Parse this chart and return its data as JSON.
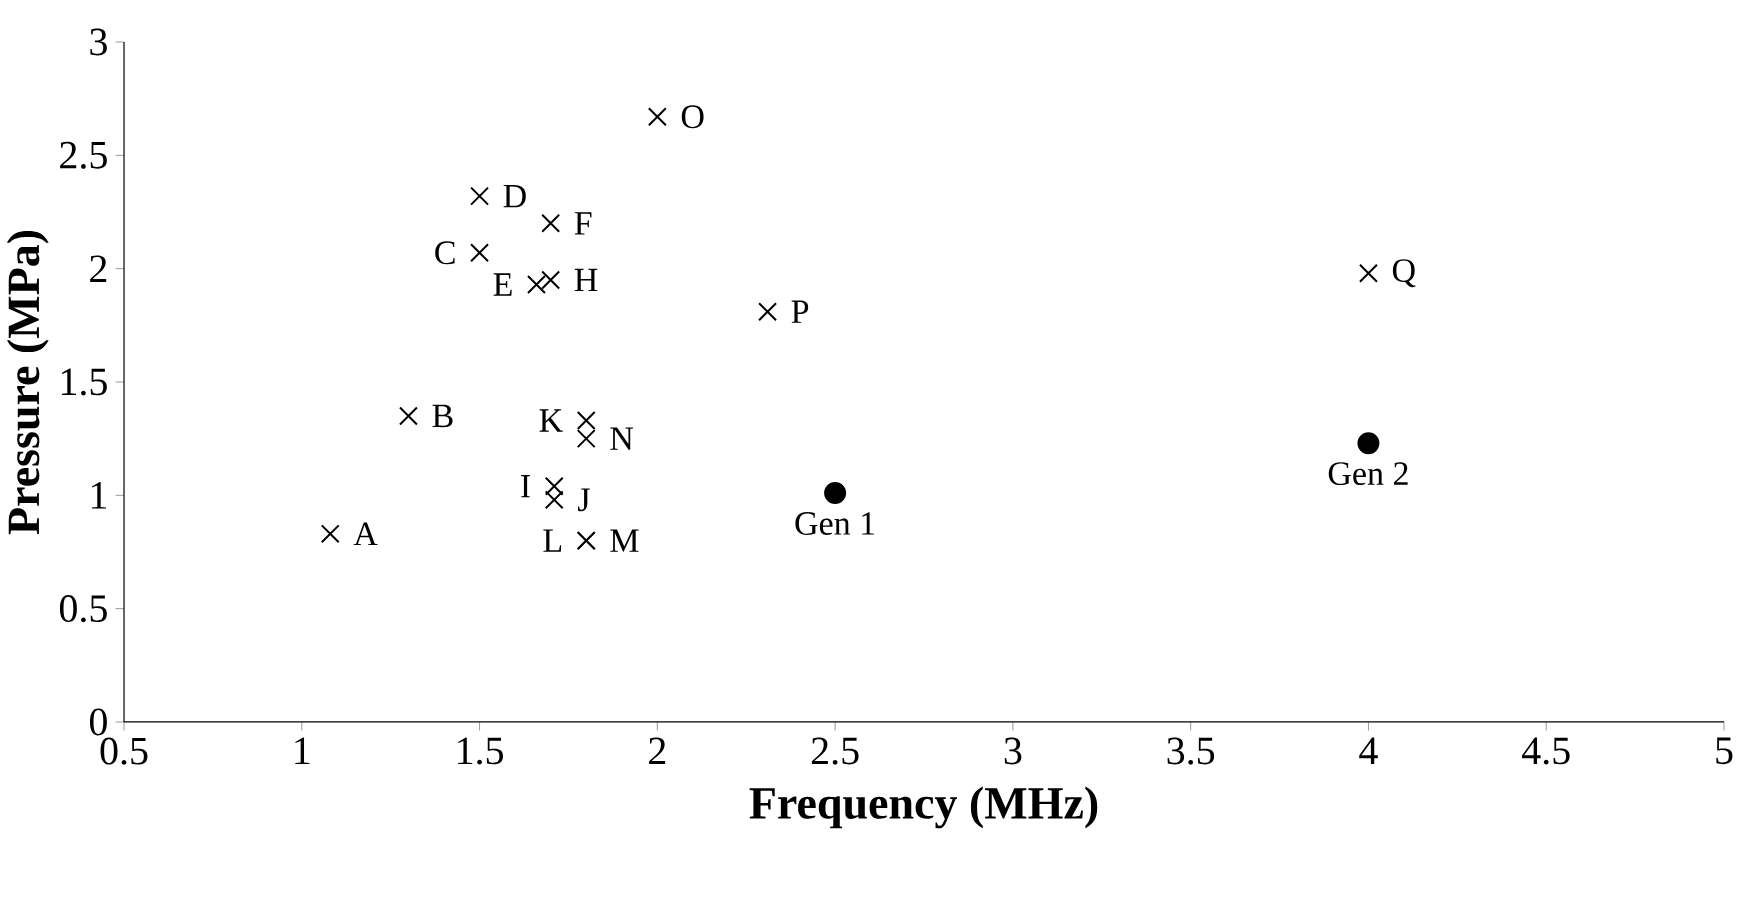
{
  "chart_data": {
    "type": "scatter",
    "xlabel": "Frequency (MHz)",
    "ylabel": "Pressure (MPa)",
    "xlim": [
      0.5,
      5
    ],
    "ylim": [
      0,
      3
    ],
    "xticks": [
      0.5,
      1,
      1.5,
      2,
      2.5,
      3,
      3.5,
      4,
      4.5,
      5
    ],
    "yticks": [
      0,
      0.5,
      1,
      1.5,
      2,
      2.5,
      3
    ],
    "grid": false,
    "series": [
      {
        "color": "#000000",
        "marker": "cross",
        "x": [
          1.08,
          1.3,
          1.5,
          1.5,
          1.66,
          1.7,
          1.7,
          1.71,
          1.71,
          1.8,
          1.8,
          1.8,
          1.8,
          2.0,
          2.31,
          4.0
        ],
        "values": [
          0.83,
          1.35,
          2.07,
          2.32,
          1.93,
          2.2,
          1.95,
          1.04,
          0.98,
          1.33,
          0.8,
          0.8,
          1.25,
          2.67,
          1.81,
          1.98
        ]
      },
      {
        "color": "#000000",
        "marker": "circle",
        "x": [
          2.5,
          4.0
        ],
        "values": [
          1.01,
          1.23
        ]
      }
    ],
    "annotations": [
      {
        "text": "A",
        "x": 1.08,
        "y": 0.83
      },
      {
        "text": "B",
        "x": 1.3,
        "y": 1.35
      },
      {
        "text": "C",
        "x": 1.5,
        "y": 2.07
      },
      {
        "text": "D",
        "x": 1.5,
        "y": 2.32
      },
      {
        "text": "E",
        "x": 1.66,
        "y": 1.93
      },
      {
        "text": "F",
        "x": 1.7,
        "y": 2.2
      },
      {
        "text": "H",
        "x": 1.7,
        "y": 1.95
      },
      {
        "text": "I",
        "x": 1.71,
        "y": 1.04
      },
      {
        "text": "J",
        "x": 1.71,
        "y": 0.98
      },
      {
        "text": "K",
        "x": 1.8,
        "y": 1.33
      },
      {
        "text": "L",
        "x": 1.8,
        "y": 0.8
      },
      {
        "text": "M",
        "x": 1.8,
        "y": 0.8
      },
      {
        "text": "N",
        "x": 1.8,
        "y": 1.25
      },
      {
        "text": "O",
        "x": 2.0,
        "y": 2.67
      },
      {
        "text": "P",
        "x": 2.31,
        "y": 1.81
      },
      {
        "text": "Q",
        "x": 4.0,
        "y": 1.98
      },
      {
        "text": "Gen 1",
        "x": 2.5,
        "y": 1.01
      },
      {
        "text": "Gen 2",
        "x": 4.0,
        "y": 1.23
      }
    ]
  }
}
